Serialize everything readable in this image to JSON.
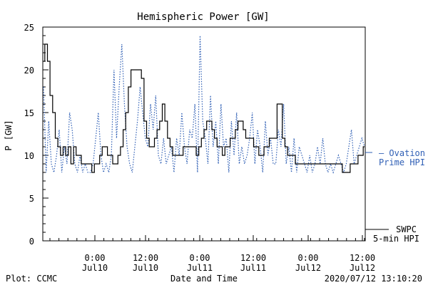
{
  "chart_data": {
    "type": "line",
    "title": "Hemispheric Power [GW]",
    "ylabel": "P [GW]",
    "xlabel": "Date and Time",
    "ylim": [
      0,
      25
    ],
    "yticks": [
      0,
      5,
      10,
      15,
      20,
      25
    ],
    "x_tick_labels": [
      {
        "time": "0:00",
        "date": "Jul10"
      },
      {
        "time": "12:00",
        "date": "Jul10"
      },
      {
        "time": "0:00",
        "date": "Jul11"
      },
      {
        "time": "12:00",
        "date": "Jul11"
      },
      {
        "time": "0:00",
        "date": "Jul12"
      },
      {
        "time": "12:00",
        "date": "Jul12"
      }
    ],
    "series": [
      {
        "name": "SWPC 5-min HPI",
        "color": "#000000",
        "style": "solid",
        "values": [
          21,
          23,
          21,
          17,
          15,
          12,
          11,
          10,
          11,
          10,
          11,
          9,
          11,
          10,
          10,
          9,
          9,
          9,
          9,
          8,
          9,
          9,
          10,
          11,
          11,
          10,
          10,
          9,
          9,
          10,
          11,
          13,
          15,
          18,
          20,
          20,
          20,
          20,
          19,
          14,
          12,
          11,
          11,
          12,
          13,
          14,
          16,
          14,
          12,
          11,
          10,
          10,
          10,
          10,
          11,
          11,
          11,
          11,
          11,
          10,
          11,
          12,
          13,
          14,
          14,
          13,
          12,
          11,
          11,
          10,
          11,
          11,
          12,
          12,
          13,
          14,
          14,
          13,
          12,
          12,
          12,
          11,
          11,
          10,
          10,
          11,
          11,
          12,
          12,
          12,
          16,
          16,
          12,
          11,
          10,
          10,
          10,
          9,
          9,
          9,
          9,
          9,
          9,
          9,
          9,
          9,
          9,
          9,
          9,
          9,
          9,
          9,
          9,
          9,
          9,
          8,
          8,
          8,
          9,
          9,
          9,
          10,
          10,
          11
        ]
      },
      {
        "name": "Ovation Prime HPI",
        "color": "#2f5fb5",
        "style": "dotted",
        "values": [
          18,
          8,
          14,
          9,
          8,
          10,
          13,
          8,
          11,
          9,
          15,
          13,
          9,
          8,
          10,
          8,
          9,
          8,
          8,
          9,
          12,
          15,
          10,
          8,
          9,
          8,
          10,
          20,
          12,
          18,
          23,
          16,
          11,
          9,
          8,
          11,
          14,
          18,
          15,
          12,
          11,
          16,
          13,
          17,
          10,
          9,
          12,
          9,
          10,
          11,
          8,
          12,
          10,
          15,
          11,
          9,
          13,
          12,
          16,
          8,
          24,
          14,
          12,
          9,
          17,
          11,
          14,
          9,
          16,
          11,
          12,
          8,
          14,
          10,
          15,
          9,
          11,
          9,
          10,
          12,
          15,
          9,
          13,
          11,
          8,
          14,
          10,
          12,
          9,
          9,
          13,
          11,
          16,
          9,
          11,
          8,
          12,
          8,
          11,
          10,
          9,
          8,
          10,
          8,
          9,
          11,
          9,
          12,
          9,
          8,
          9,
          8,
          9,
          10,
          9,
          8,
          9,
          11,
          13,
          9,
          10,
          11,
          12,
          11
        ]
      }
    ],
    "legend": [
      {
        "text": "— Ovation",
        "text2": "Prime HPI",
        "color": "#2f5fb5"
      },
      {
        "text": "SWPC",
        "text2": "5-min HPI",
        "color": "#000000"
      }
    ]
  },
  "footer": {
    "left": "Plot: CCMC",
    "center": "Date and Time",
    "right": "2020/07/12 13:10:20"
  }
}
